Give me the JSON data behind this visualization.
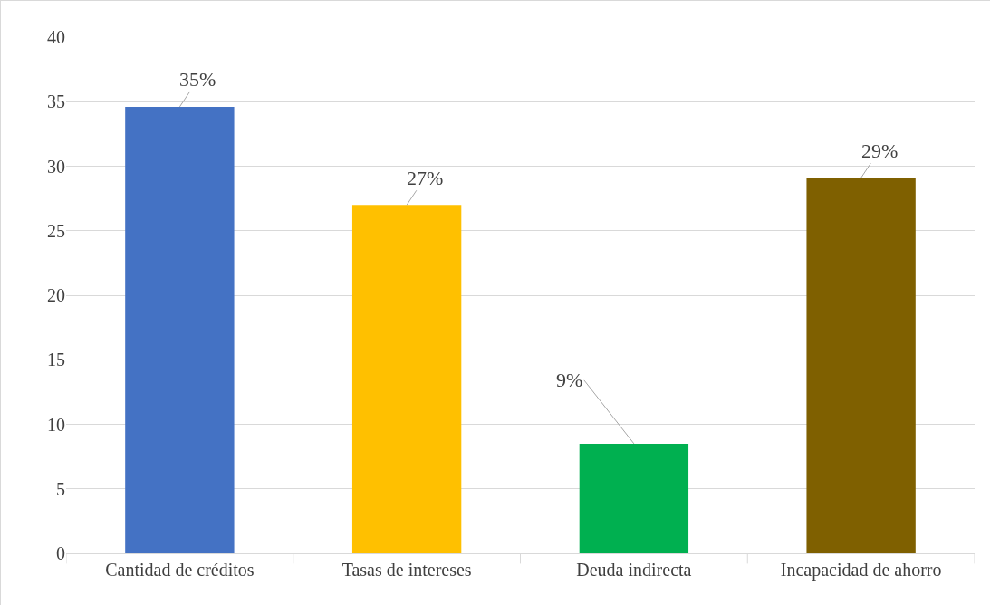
{
  "chart_data": {
    "type": "bar",
    "categories": [
      "Cantidad de créditos",
      "Tasas de intereses",
      "Deuda indirecta",
      "Incapacidad de ahorro"
    ],
    "values": [
      34.6,
      27.0,
      8.5,
      29.1
    ],
    "colors": [
      "#4472c4",
      "#ffc000",
      "#00b050",
      "#7f6000"
    ],
    "value_labels": [
      "35%",
      "27%",
      "9%",
      "29%"
    ],
    "ylim": [
      0,
      40
    ],
    "yticks": [
      0,
      5,
      10,
      15,
      20,
      25,
      30,
      35,
      40
    ],
    "grid": "y",
    "legend": false
  }
}
